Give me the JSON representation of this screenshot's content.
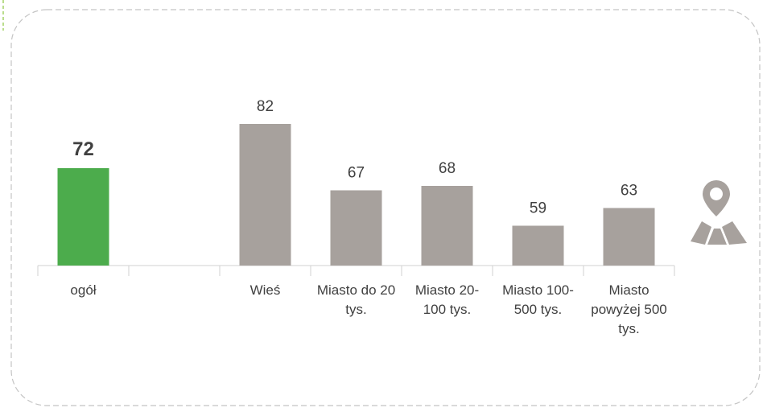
{
  "chart_data": {
    "type": "bar",
    "categories": [
      "ogół",
      null,
      "Wieś",
      "Miasto do 20 tys.",
      "Miasto 20-100 tys.",
      "Miasto 100-500 tys.",
      "Miasto powyżej 500 tys."
    ],
    "values": [
      72,
      null,
      82,
      67,
      68,
      59,
      63
    ],
    "colors": [
      "#4cac4c",
      "#a7a19d",
      "#a7a19d",
      "#a7a19d",
      "#a7a19d",
      "#a7a19d",
      "#a7a19d"
    ],
    "ylim": [
      50,
      90
    ]
  }
}
